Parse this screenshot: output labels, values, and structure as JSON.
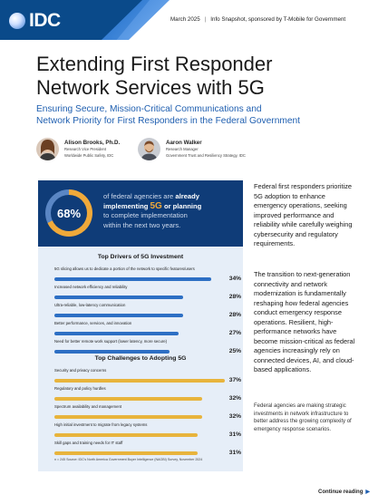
{
  "header": {
    "logo": "IDC",
    "date": "March 2025",
    "report_info": "Info Snapshot, sponsored by T-Mobile for Government"
  },
  "title_line1": "Extending First Responder",
  "title_line2": "Network Services with 5G",
  "subtitle_line1": "Ensuring Secure, Mission-Critical Communications and",
  "subtitle_line2": "Network Priority for First Responders in the Federal Government",
  "authors": [
    {
      "name": "Alison Brooks, Ph.D.",
      "role1": "Research Vice President",
      "role2": "Worldwide Public Safety, IDC"
    },
    {
      "name": "Aaron Walker",
      "role1": "Research Manager",
      "role2": "Government Trust and Resiliency Strategy, IDC"
    }
  ],
  "stat": {
    "value": "68%",
    "fraction": 0.68,
    "line1_pre": "of federal agencies are ",
    "line1_bold": "already",
    "line2_bold": "implementing ",
    "line2_5g": "5G",
    "line2_rest": " or planning",
    "line3": "to complete implementation",
    "line4": "within the next two years.",
    "ring_color": "#f0a93a"
  },
  "drivers": {
    "title": "Top Drivers of 5G Investment",
    "color": "#2d6fc4",
    "items": [
      {
        "label": "5G slicing allows us to dedicate a portion of the network to specific features/users",
        "value": "34%",
        "pct": 34
      },
      {
        "label": "Increased network efficiency and reliability",
        "value": "28%",
        "pct": 28
      },
      {
        "label": "Ultra-reliable, low-latency communication",
        "value": "28%",
        "pct": 28
      },
      {
        "label": "Better performance, services, and innovation",
        "value": "27%",
        "pct": 27
      },
      {
        "label": "Need for better remote work support (lower latency, more secure)",
        "value": "25%",
        "pct": 25
      }
    ]
  },
  "challenges": {
    "title": "Top Challenges to Adopting 5G",
    "color": "#e8b43c",
    "items": [
      {
        "label": "Security and privacy concerns",
        "value": "37%",
        "pct": 37
      },
      {
        "label": "Regulatory and policy hurdles",
        "value": "32%",
        "pct": 32
      },
      {
        "label": "Spectrum availability and management",
        "value": "32%",
        "pct": 32
      },
      {
        "label": "High initial investment to migrate from legacy systems",
        "value": "31%",
        "pct": 31
      },
      {
        "label": "Skill gaps and training needs for IT staff",
        "value": "31%",
        "pct": 31
      }
    ]
  },
  "source_note": "n = 245 Source: IDC's North America Government Buyer Intelligence (NAGBI) Survey, November 2024",
  "body": {
    "p1": "Federal first responders prioritize 5G adoption to enhance emergency operations, seeking improved performance and reliability while carefully weighing cybersecurity and regulatory requirements.",
    "p2": "The transition to next-generation connectivity and network modernization is fundamentally reshaping how federal agencies conduct emergency response operations. Resilient, high-performance networks have become mission-critical as federal agencies increasingly rely on connected devices, AI, and cloud-based applications.",
    "p3": "Federal agencies are making strategic investments in network infrastructure to better address the growing complexity of emergency response scenarios."
  },
  "continue": "Continue reading"
}
